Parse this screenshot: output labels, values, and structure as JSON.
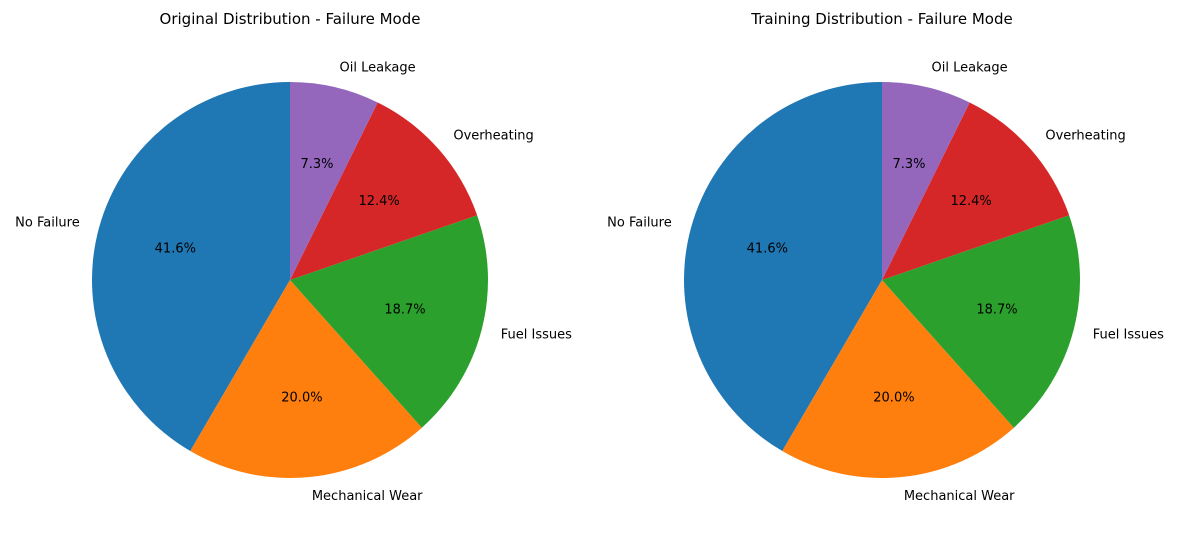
{
  "chart_data": [
    {
      "type": "pie",
      "title": "Original Distribution - Failure Mode",
      "categories": [
        "No Failure",
        "Mechanical Wear",
        "Fuel Issues",
        "Overheating",
        "Oil Leakage"
      ],
      "values": [
        41.6,
        20.0,
        18.7,
        12.4,
        7.3
      ],
      "value_labels": [
        "41.6%",
        "20.0%",
        "18.7%",
        "12.4%",
        "7.3%"
      ],
      "colors": [
        "#1f77b4",
        "#ff7f0e",
        "#2ca02c",
        "#d62728",
        "#9467bd"
      ],
      "start_angle": 90,
      "direction": "counterclockwise"
    },
    {
      "type": "pie",
      "title": "Training Distribution - Failure Mode",
      "categories": [
        "No Failure",
        "Mechanical Wear",
        "Fuel Issues",
        "Overheating",
        "Oil Leakage"
      ],
      "values": [
        41.6,
        20.0,
        18.7,
        12.4,
        7.3
      ],
      "value_labels": [
        "41.6%",
        "20.0%",
        "18.7%",
        "12.4%",
        "7.3%"
      ],
      "colors": [
        "#1f77b4",
        "#ff7f0e",
        "#2ca02c",
        "#d62728",
        "#9467bd"
      ],
      "start_angle": 90,
      "direction": "counterclockwise"
    }
  ]
}
